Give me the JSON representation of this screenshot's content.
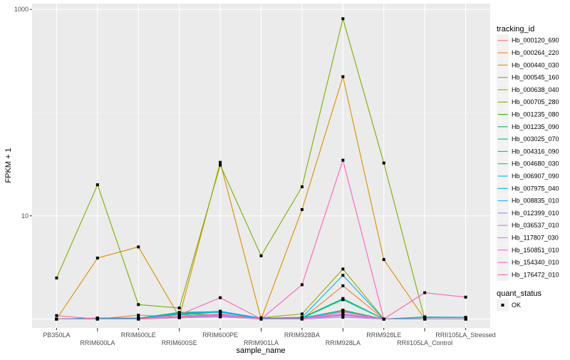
{
  "chart_data": {
    "type": "line",
    "xlabel": "sample_name",
    "ylabel": "FPKM + 1",
    "y_scale": "log10",
    "ylim": [
      0.82,
      1140
    ],
    "y_ticks": [
      10,
      1000
    ],
    "y_tick_labels": [
      "10",
      "1000"
    ],
    "grid": true,
    "legend_position": "right",
    "categories": [
      "PB350LA",
      "RRIM600LA",
      "RRIM600LE",
      "RRIM600SE",
      "RRIM600PE",
      "RRIM901LA",
      "RRIM928BA",
      "RRIM928LA",
      "RRIM928LE",
      "RRII105LA_Control",
      "RRII105LA_Stressed"
    ],
    "legend_title": "tracking_id",
    "series": [
      {
        "name": "Hb_000120_690",
        "color": "#F8766D",
        "values": [
          1,
          1,
          1,
          1.04,
          1.08,
          1,
          1,
          1.1,
          1,
          1,
          1
        ]
      },
      {
        "name": "Hb_000264_220",
        "color": "#EA8331",
        "values": [
          1,
          1,
          1.09,
          1.05,
          1.1,
          1,
          1,
          2.1,
          1,
          1,
          1
        ]
      },
      {
        "name": "Hb_000440_030",
        "color": "#D89000",
        "values": [
          1,
          3.9,
          5.0,
          1.05,
          33,
          1,
          11.5,
          223,
          3.77,
          1,
          1
        ]
      },
      {
        "name": "Hb_000545_160",
        "color": "#C09B00",
        "values": [
          1,
          1,
          1,
          1.03,
          1.05,
          1,
          1,
          1.08,
          1,
          1,
          1
        ]
      },
      {
        "name": "Hb_000638_040",
        "color": "#A3A500",
        "values": [
          1,
          1,
          1,
          1.1,
          1.05,
          1.03,
          1.12,
          3.05,
          1,
          1,
          1
        ]
      },
      {
        "name": "Hb_000705_280",
        "color": "#7CAE00",
        "values": [
          2.5,
          20,
          1.38,
          1.28,
          31,
          4.1,
          19.1,
          813,
          32.5,
          1,
          1
        ]
      },
      {
        "name": "Hb_001235_080",
        "color": "#39B600",
        "values": [
          1,
          1,
          1,
          1.12,
          1.1,
          1.02,
          1.02,
          1.22,
          1,
          1,
          1
        ]
      },
      {
        "name": "Hb_001235_090",
        "color": "#00BB4E",
        "values": [
          1,
          1.02,
          1.02,
          1.16,
          1.18,
          1.02,
          1.03,
          1.58,
          1,
          1,
          1
        ]
      },
      {
        "name": "Hb_003025_070",
        "color": "#00BF7D",
        "values": [
          1,
          1.01,
          1.01,
          1.15,
          1.17,
          1.01,
          1.02,
          1.54,
          1,
          1,
          1
        ]
      },
      {
        "name": "Hb_004316_090",
        "color": "#00C1A3",
        "values": [
          1,
          1.01,
          1.01,
          1.14,
          1.16,
          1.01,
          1.02,
          1.55,
          1,
          1,
          1
        ]
      },
      {
        "name": "Hb_004680_030",
        "color": "#00BFC4",
        "values": [
          1,
          1.02,
          1.02,
          1.1,
          1.18,
          1.01,
          1.02,
          1.2,
          1,
          1.05,
          1.04
        ]
      },
      {
        "name": "Hb_006907_090",
        "color": "#00BAE0",
        "values": [
          1,
          1.02,
          1.02,
          1.1,
          1.17,
          1,
          1.03,
          1.2,
          1,
          1.03,
          1.03
        ]
      },
      {
        "name": "Hb_007975_040",
        "color": "#00B0F6",
        "values": [
          1,
          1.02,
          1.02,
          1.12,
          1.19,
          1.02,
          1.04,
          2.65,
          1,
          1.04,
          1.04
        ]
      },
      {
        "name": "Hb_008835_010",
        "color": "#35A2FF",
        "values": [
          1,
          1,
          1,
          1.06,
          1.1,
          1,
          1.01,
          1.12,
          1,
          1,
          1
        ]
      },
      {
        "name": "Hb_012399_010",
        "color": "#9590FF",
        "values": [
          1,
          1,
          1,
          1.03,
          1.06,
          1,
          1,
          1.04,
          1,
          1,
          1
        ]
      },
      {
        "name": "Hb_036537_010",
        "color": "#C77CFF",
        "values": [
          1,
          1,
          1,
          1.04,
          1.07,
          1,
          1,
          1.08,
          1,
          1,
          1
        ]
      },
      {
        "name": "Hb_117807_030",
        "color": "#E76BF3",
        "values": [
          1,
          1,
          1,
          1.05,
          1.1,
          1,
          1,
          1.12,
          1,
          1,
          1
        ]
      },
      {
        "name": "Hb_150851_010",
        "color": "#FA62DB",
        "values": [
          1,
          1,
          1,
          1.06,
          1.12,
          1,
          1.01,
          1.17,
          1,
          1,
          1
        ]
      },
      {
        "name": "Hb_154340_010",
        "color": "#FF62BC",
        "values": [
          1,
          1,
          1,
          1.1,
          1.61,
          1,
          2.15,
          34.6,
          1,
          1.8,
          1.63
        ]
      },
      {
        "name": "Hb_176472_010",
        "color": "#FF6C91",
        "values": [
          1.08,
          1,
          1,
          1.05,
          1.12,
          1,
          1,
          1.17,
          1,
          1,
          1
        ]
      }
    ],
    "shape_legend_title": "quant_status",
    "shape_legend_items": [
      {
        "label": "OK",
        "color": "#000000"
      }
    ]
  }
}
